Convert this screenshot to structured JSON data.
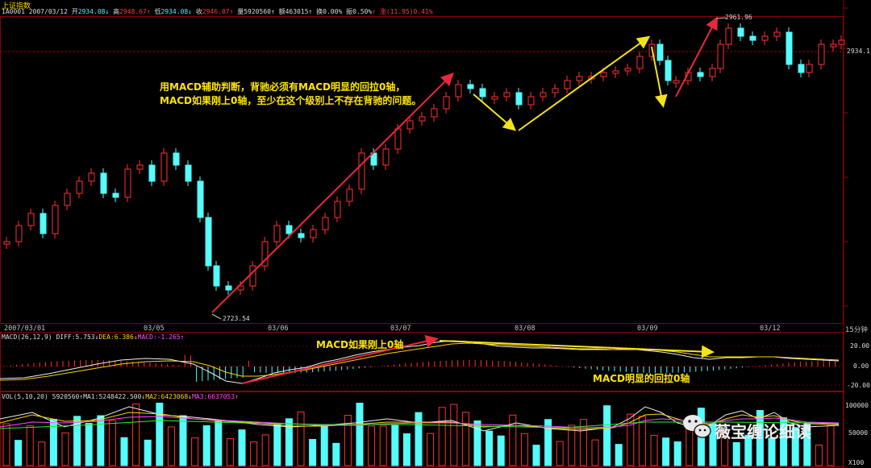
{
  "app": {
    "index_name": "上证指数",
    "symbol": "1A0001",
    "date": "2007/03/12"
  },
  "quote_bar": {
    "open_label": "开",
    "open_value": "2934.08",
    "high_label": "高",
    "high_value": "2948.67",
    "low_label": "低",
    "low_value": "2934.08",
    "close_label": "收",
    "close_value": "2946.07",
    "volume_label": "量",
    "volume_value": "5920560",
    "amount_label": "额",
    "amount_value": "463015",
    "turnover_label": "换",
    "turnover_value": "0.00%",
    "amplitude_label": "振",
    "amplitude_value": "0.50%",
    "change_label": "涨",
    "change_value": "(11.95)0.41%"
  },
  "price_chart": {
    "high_marker": "2961.96",
    "low_marker": "2723.54",
    "current_price": "2934.1",
    "annotation_line1": "用MACD辅助判断，背驰必须有MACD明显的回拉0轴，",
    "annotation_line2": "MACD如果刚上0轴，至少在这个级别上不存在背驰的问题。"
  },
  "time_axis": {
    "labels": [
      "2007/03/01",
      "03/05",
      "03/06",
      "03/07",
      "03/08",
      "03/09",
      "03/12"
    ],
    "period": "15分钟"
  },
  "macd_panel": {
    "title": "MACD(26,12,9)",
    "diff_label": "DIFF:5.753",
    "dea_label": "DEA:6.386",
    "macd_label": "MACD:-1.265",
    "annotation_top": "MACD如果刚上0轴",
    "annotation_bottom": "MACD明显的回拉0轴",
    "y_ticks": [
      "20.00",
      "0.00",
      "-20.00"
    ]
  },
  "volume_panel": {
    "title": "VOL(5,10,20)",
    "vol_value": "5920560",
    "ma1": "MA1:5248422.500",
    "ma2": "MA2:6423068",
    "ma3": "MA3:6637053",
    "y_ticks": [
      "100000",
      "50000",
      "X100"
    ]
  },
  "watermark": {
    "text": "薇宝缠论细读"
  },
  "colors": {
    "up": "#ff3232",
    "down": "#54fcfc",
    "arrow_red": "#e8283c",
    "arrow_yellow": "#f3e31a",
    "grid": "#8b0000"
  }
}
